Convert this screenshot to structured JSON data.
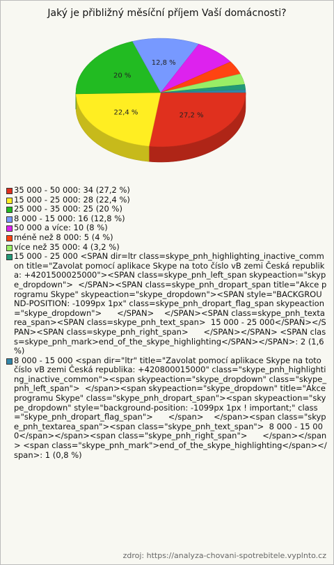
{
  "chart_data": {
    "type": "pie",
    "title": "Jaký je přibližný měsíční příjem Vaší domácnosti?",
    "categories": [
      "35 000 - 50 000: 34 (27,2 %)",
      "15 000 - 25 000: 28 (22,4 %)",
      "25 000 - 35 000: 25 (20 %)",
      "8 000 - 15 000: 16 (12,8 %)",
      "50 000 a více: 10 (8 %)",
      "méně než 8 000: 5 (4 %)",
      "více než 35 000: 4 (3,2 %)",
      "15 000 - 25 000 <SPAN dir=ltr class=skype_pnh_highlighting_inactive_common title=\"Zavolat pomocí aplikace Skype na toto číslo vB zemi Česká republika: +4201500025000\"><SPAN class=skype_pnh_left_span skypeaction=\"skype_dropdown\">  </SPAN><SPAN class=skype_pnh_dropart_span title=\"Akce programu Skype\" skypeaction=\"skype_dropdown\"><SPAN style=\"BACKGROUND-POSITION: -1099px 1px\" class=skype_pnh_dropart_flag_span skypeaction=\"skype_dropdown\">      </SPAN>    </SPAN><SPAN class=skype_pnh_textarea_span><SPAN class=skype_pnh_text_span>  15 000 - 25 000</SPAN></SPAN><SPAN class=skype_pnh_right_span>      </SPAN></SPAN> <SPAN class=skype_pnh_mark>end_of_the_skype_highlighting</SPAN></SPAN>: 2 (1,6 %)",
      "8 000 - 15 000 <span dir=\"ltr\" title=\"Zavolat pomocí aplikace Skype na toto číslo vB zemi Česká republika: +420800015000\" class=\"skype_pnh_highlighting_inactive_common\"><span skypeaction=\"skype_dropdown\" class=\"skype_pnh_left_span\">  </span><span skypeaction=\"skype_dropdown\" title=\"Akce programu Skype\" class=\"skype_pnh_dropart_span\"><span skypeaction=\"skype_dropdown\" style=\"background-position: -1099px 1px ! important;\" class=\"skype_pnh_dropart_flag_span\">      </span>    </span><span class=\"skype_pnh_textarea_span\"><span class=\"skype_pnh_text_span\">  8 000 - 15 000</span></span><span class=\"skype_pnh_right_span\">      </span></span> <span class=\"skype_pnh_mark\">end_of_the_skype_highlighting</span></span>: 1 (0,8 %)"
    ],
    "values": [
      27.2,
      22.4,
      20,
      12.8,
      8,
      4,
      3.2,
      1.6,
      0.8
    ],
    "value_labels": [
      "27,2 %",
      "22,4 %",
      "20 %",
      "12,8 %",
      null,
      null,
      null,
      null,
      null
    ],
    "colors": [
      "#e0301e",
      "#ffee22",
      "#22bb22",
      "#7799ff",
      "#dd22ee",
      "#ff4411",
      "#99ee66",
      "#229977",
      "#3388aa"
    ],
    "source": "zdroj: https://analyza-chovani-spotrebitele.vyplnto.cz"
  }
}
